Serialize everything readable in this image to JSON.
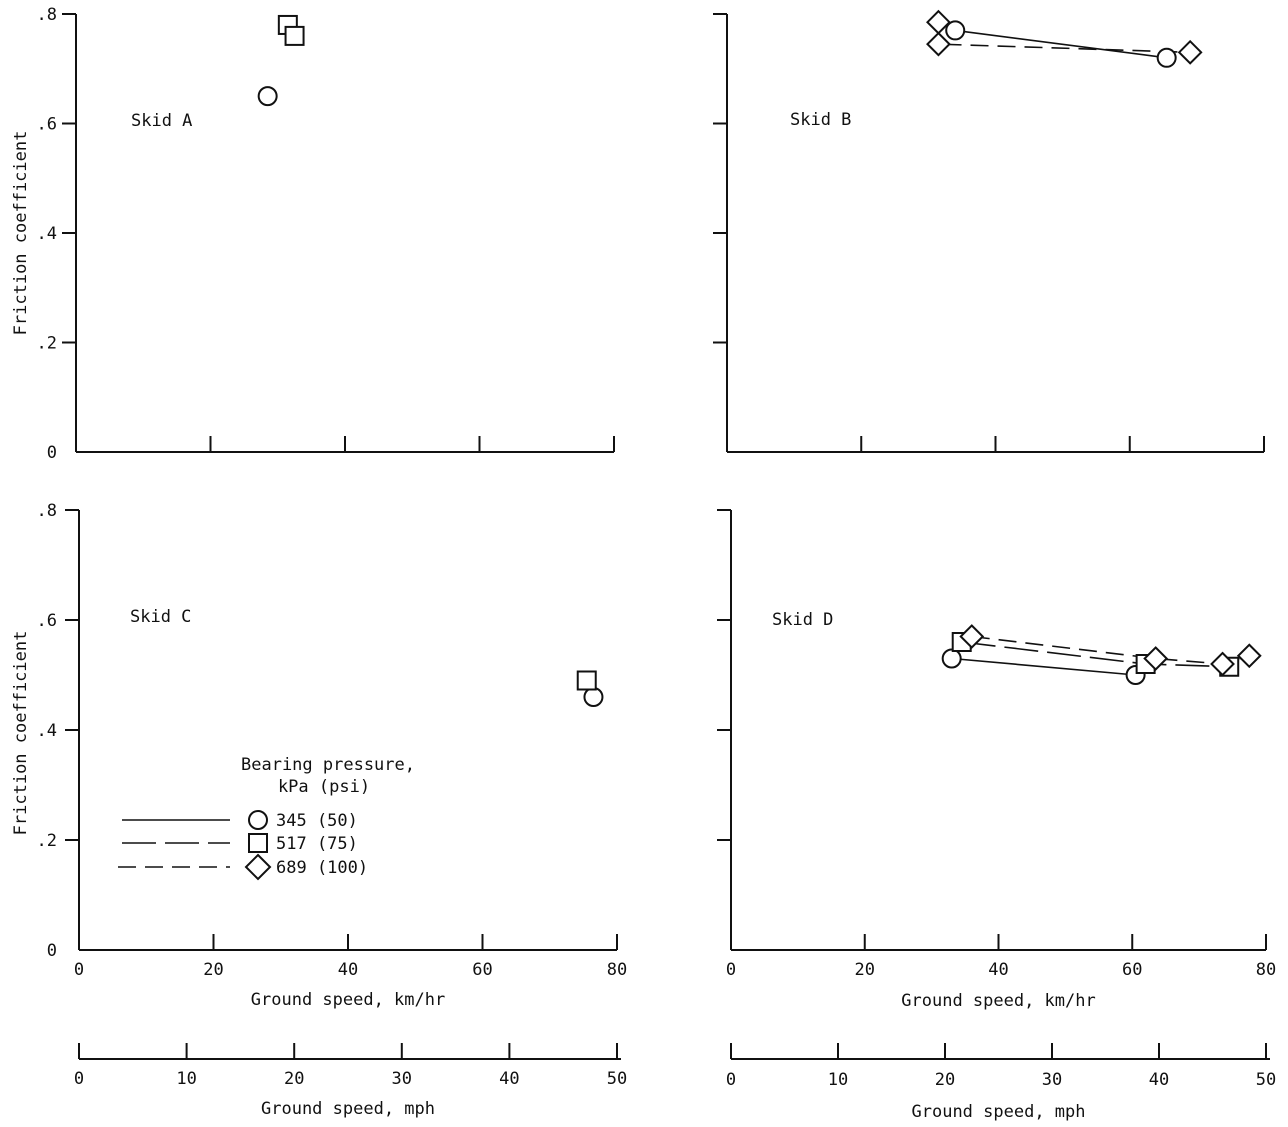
{
  "chart_data": [
    {
      "type": "scatter",
      "panel_label": "Skid A",
      "xlabel": "",
      "ylabel": "Friction coefficient",
      "xlim": [
        0,
        80
      ],
      "ylim": [
        0,
        0.8
      ],
      "x_ticks": [
        20,
        40,
        60,
        80
      ],
      "y_ticks": [
        0,
        0.2,
        0.4,
        0.6,
        0.8
      ],
      "y_tick_labels": [
        "0",
        ".2",
        ".4",
        ".6",
        ".8"
      ],
      "series": [
        {
          "marker": "circle",
          "line": "solid",
          "points": [
            [
              28.5,
              0.65
            ]
          ]
        },
        {
          "marker": "square",
          "line": "long-dash",
          "points": [
            [
              31.5,
              0.78
            ],
            [
              32.5,
              0.76
            ]
          ]
        }
      ]
    },
    {
      "type": "line",
      "panel_label": "Skid B",
      "xlabel": "",
      "ylabel": "",
      "xlim": [
        0,
        80
      ],
      "ylim": [
        0,
        0.8
      ],
      "x_ticks": [
        20,
        40,
        60,
        80
      ],
      "y_ticks": [
        0,
        0.2,
        0.4,
        0.6,
        0.8
      ],
      "series": [
        {
          "marker": "circle",
          "line": "solid",
          "points": [
            [
              34,
              0.77
            ],
            [
              65.5,
              0.72
            ]
          ]
        },
        {
          "marker": "diamond",
          "line": "short-dash",
          "points": [
            [
              31.5,
              0.785
            ],
            [
              31.5,
              0.745
            ],
            [
              69,
              0.73
            ]
          ]
        }
      ]
    },
    {
      "type": "scatter",
      "panel_label": "Skid C",
      "xlabel": "Ground speed, km/hr",
      "ylabel": "Friction coefficient",
      "xlim": [
        0,
        80
      ],
      "ylim": [
        0,
        0.8
      ],
      "x_ticks": [
        0,
        20,
        40,
        60,
        80
      ],
      "x_tick_labels": [
        "0",
        "20",
        "40",
        "60",
        "80"
      ],
      "y_ticks": [
        0,
        0.2,
        0.4,
        0.6,
        0.8
      ],
      "y_tick_labels": [
        "0",
        ".2",
        ".4",
        ".6",
        ".8"
      ],
      "secondary_x": {
        "label": "Ground speed, mph",
        "ticks": [
          0,
          10,
          20,
          30,
          40,
          50
        ],
        "tick_labels": [
          "0",
          "10",
          "20",
          "30",
          "40",
          "50"
        ]
      },
      "series": [
        {
          "marker": "circle",
          "line": "solid",
          "points": [
            [
              76.5,
              0.46
            ]
          ]
        },
        {
          "marker": "square",
          "line": "long-dash",
          "points": [
            [
              75.5,
              0.49
            ]
          ]
        }
      ]
    },
    {
      "type": "line",
      "panel_label": "Skid D",
      "xlabel": "Ground speed, km/hr",
      "ylabel": "",
      "xlim": [
        0,
        80
      ],
      "ylim": [
        0,
        0.8
      ],
      "x_ticks": [
        0,
        20,
        40,
        60,
        80
      ],
      "x_tick_labels": [
        "0",
        "20",
        "40",
        "60",
        "80"
      ],
      "y_ticks": [
        0,
        0.2,
        0.4,
        0.6,
        0.8
      ],
      "secondary_x": {
        "label": "Ground speed, mph",
        "ticks": [
          0,
          10,
          20,
          30,
          40,
          50
        ],
        "tick_labels": [
          "0",
          "10",
          "20",
          "30",
          "40",
          "50"
        ]
      },
      "series": [
        {
          "marker": "circle",
          "line": "solid",
          "points": [
            [
              33,
              0.53
            ],
            [
              60.5,
              0.5
            ]
          ]
        },
        {
          "marker": "square",
          "line": "long-dash",
          "points": [
            [
              34.5,
              0.56
            ],
            [
              62,
              0.52
            ],
            [
              74.5,
              0.515
            ]
          ]
        },
        {
          "marker": "diamond",
          "line": "short-dash",
          "points": [
            [
              36,
              0.57
            ],
            [
              63.5,
              0.53
            ],
            [
              73.5,
              0.52
            ],
            [
              77.5,
              0.535
            ]
          ]
        }
      ]
    }
  ],
  "legend": {
    "title_line1": "Bearing pressure,",
    "title_line2": "kPa (psi)",
    "entries": [
      {
        "marker": "circle",
        "line": "solid",
        "label": "345 (50)"
      },
      {
        "marker": "square",
        "line": "long-dash",
        "label": "517 (75)"
      },
      {
        "marker": "diamond",
        "line": "short-dash",
        "label": "689 (100)"
      }
    ]
  }
}
